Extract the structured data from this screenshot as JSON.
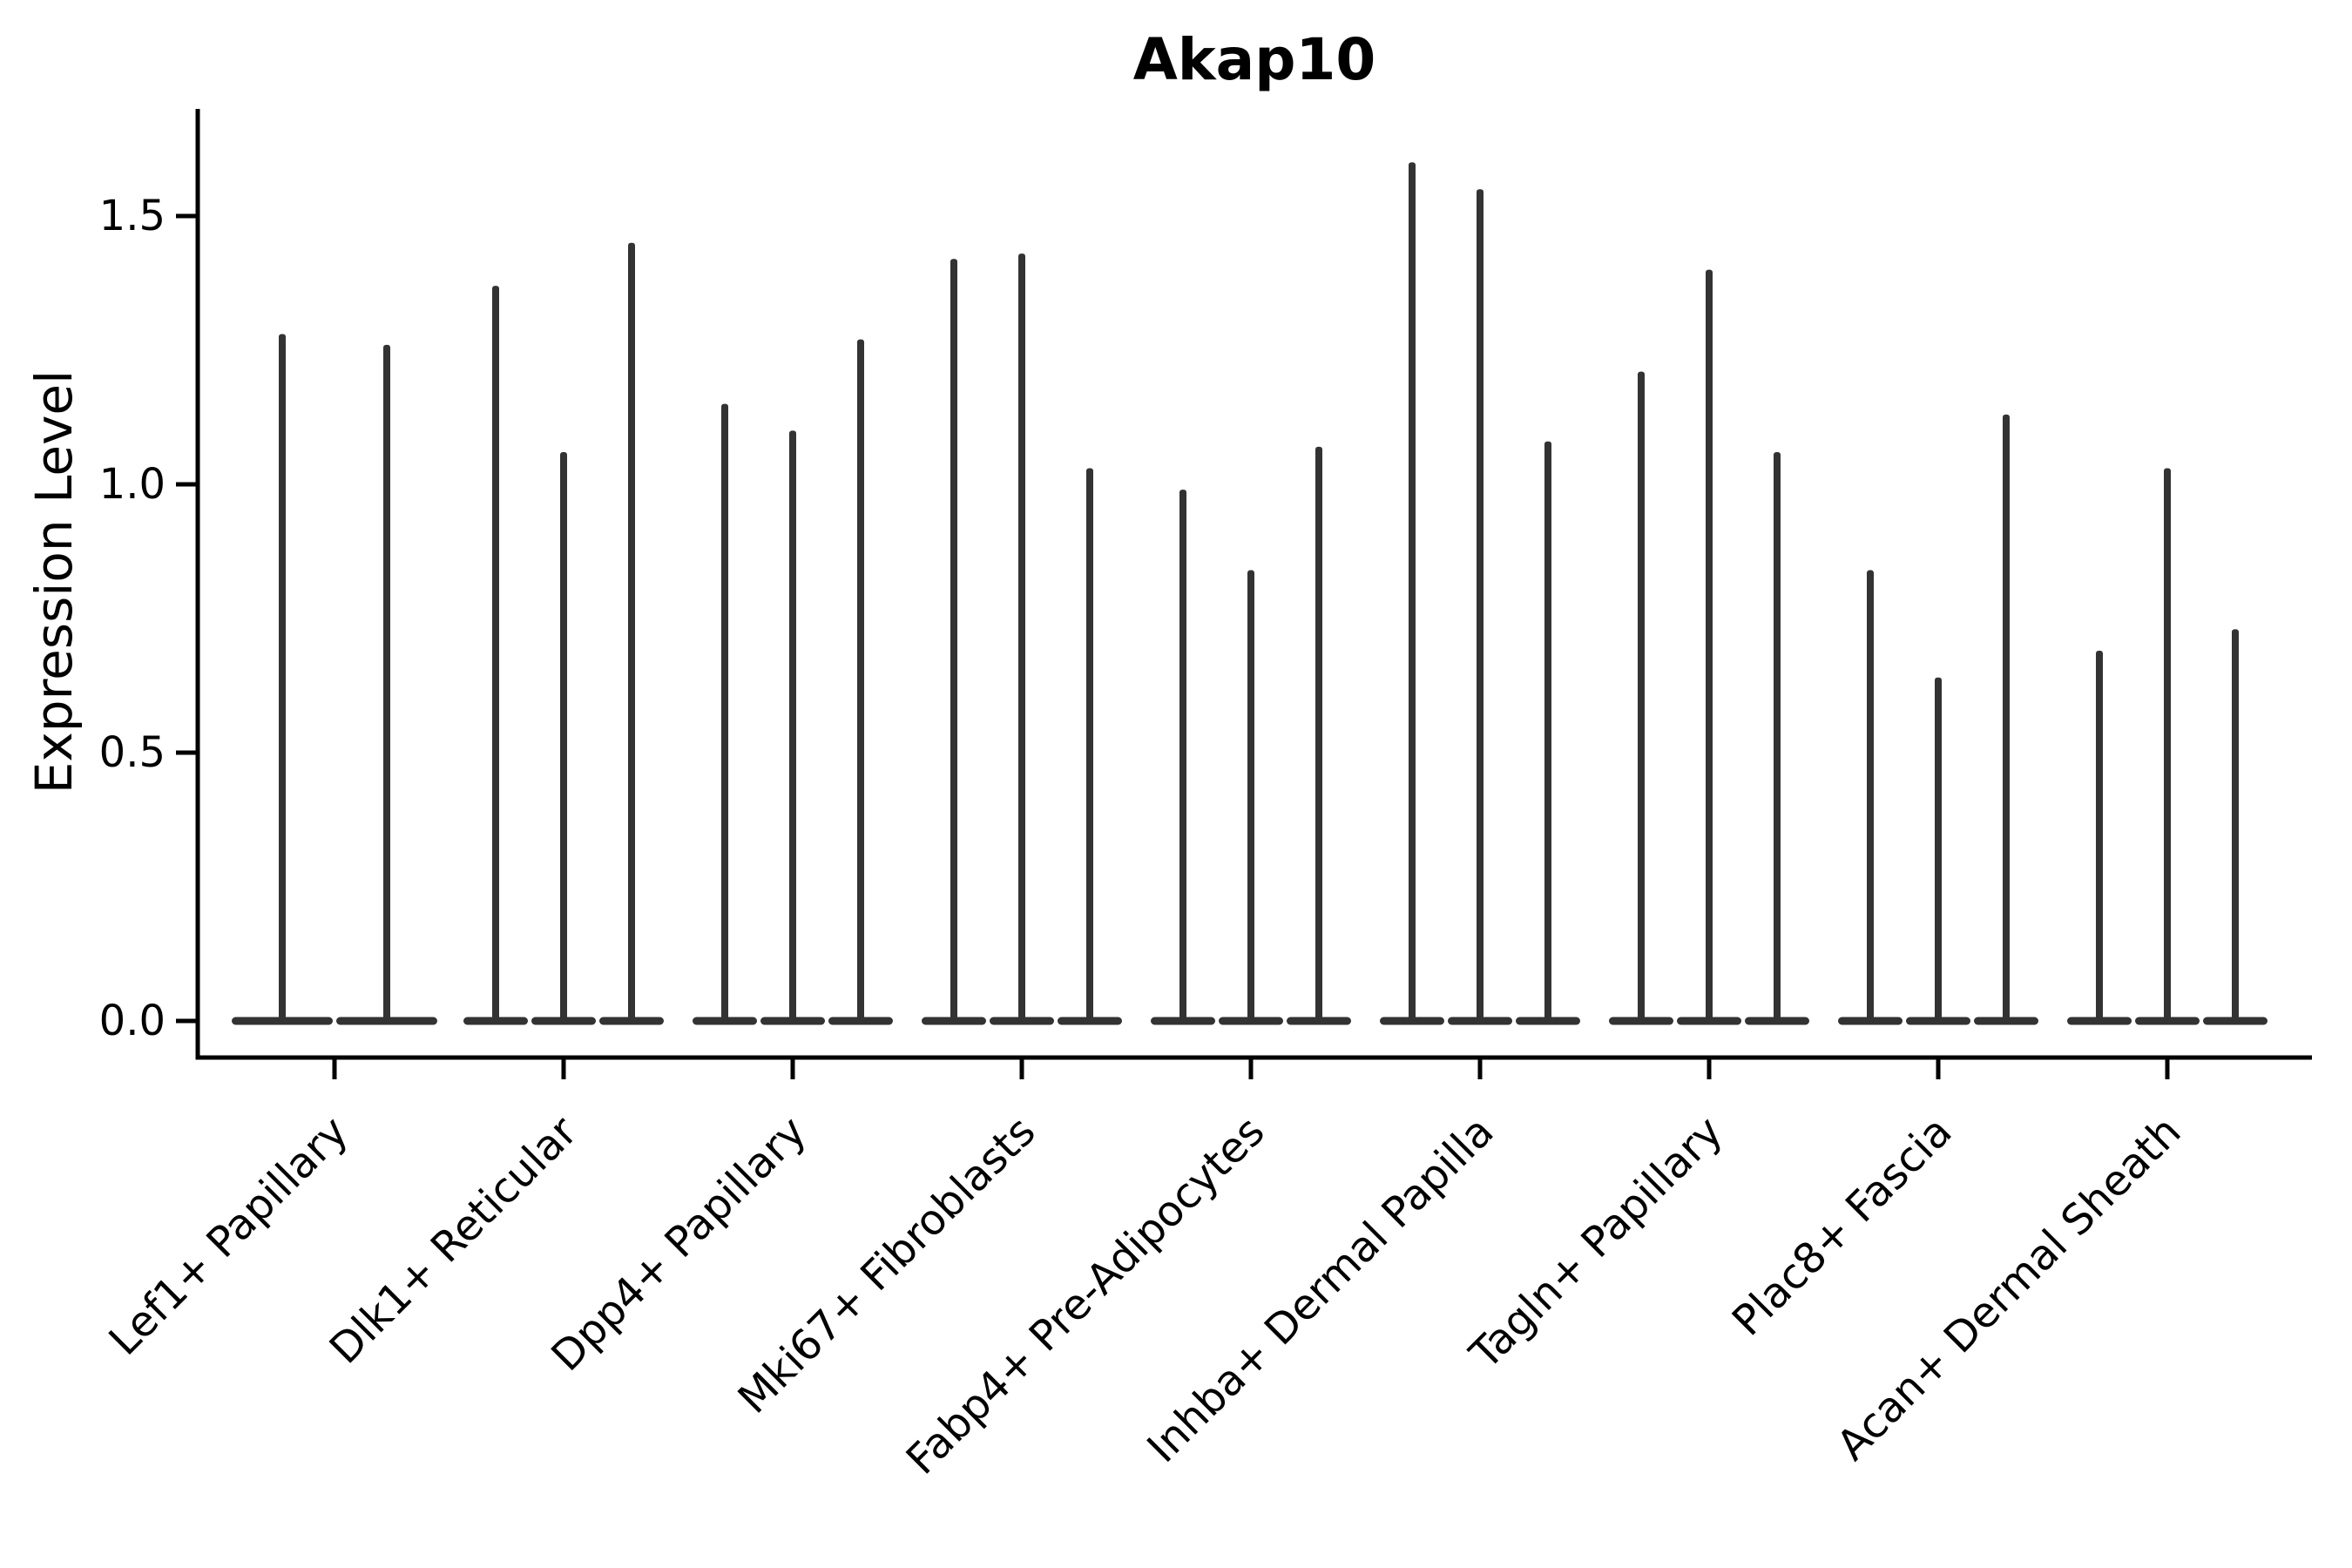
{
  "chart_data": {
    "type": "violin",
    "title": "Akap10",
    "ylabel": "Expression Level",
    "xlabel": "",
    "legend": "none",
    "grid": false,
    "ylim": [
      -0.07,
      1.7
    ],
    "yticks": {
      "values": [
        0.0,
        0.5,
        1.0,
        1.5
      ],
      "labels": [
        "0.0",
        "0.5",
        "1.0",
        "1.5"
      ]
    },
    "colors": {
      "violin": "#333333",
      "axis": "#000000",
      "text": "#000000",
      "background": "#ffffff"
    },
    "categories": [
      "Lef1+ Papillary",
      "Dlk1+ Reticular",
      "Dpp4+ Papillary",
      "Mki67+ Fibroblasts",
      "Fabp4+ Pre-Adipocytes",
      "Inhba+ Dermal Papilla",
      "Tagln+ Papillary",
      "Plac8+ Fascia",
      "Acan+ Dermal Sheath"
    ],
    "groups": [
      {
        "category": "Lef1+ Papillary",
        "violin_max_expression": [
          1.28,
          1.26
        ]
      },
      {
        "category": "Dlk1+ Reticular",
        "violin_max_expression": [
          1.37,
          1.06,
          1.45
        ]
      },
      {
        "category": "Dpp4+ Papillary",
        "violin_max_expression": [
          1.15,
          1.1,
          1.27
        ]
      },
      {
        "category": "Mki67+ Fibroblasts",
        "violin_max_expression": [
          1.42,
          1.43,
          1.03
        ]
      },
      {
        "category": "Fabp4+ Pre-Adipocytes",
        "violin_max_expression": [
          0.99,
          0.84,
          1.07
        ]
      },
      {
        "category": "Inhba+ Dermal Papilla",
        "violin_max_expression": [
          1.6,
          1.55,
          1.08
        ]
      },
      {
        "category": "Tagln+ Papillary",
        "violin_max_expression": [
          1.21,
          1.4,
          1.06
        ]
      },
      {
        "category": "Plac8+ Fascia",
        "violin_max_expression": [
          0.84,
          0.64,
          1.13
        ]
      },
      {
        "category": "Acan+ Dermal Sheath",
        "violin_max_expression": [
          0.69,
          1.03,
          0.73
        ]
      }
    ],
    "description": "Each category shows thin violin shapes (one per sample) collapsed to a flat base at 0 with a narrow spike up to the max expression value."
  }
}
